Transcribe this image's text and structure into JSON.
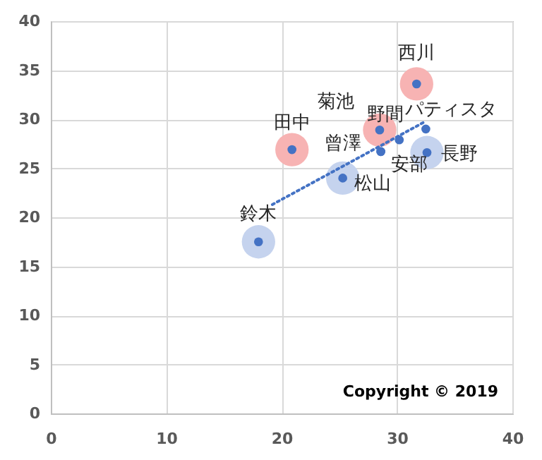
{
  "chart_data": {
    "type": "scatter",
    "xlim": [
      0,
      40
    ],
    "xticks": [
      0,
      10,
      20,
      30,
      40
    ],
    "ylim": [
      0,
      40
    ],
    "yticks": [
      0,
      5,
      10,
      15,
      20,
      25,
      30,
      35,
      40
    ],
    "grid": true,
    "marker": "circle",
    "annotations": [
      "Copyright © 2019"
    ],
    "series": [
      {
        "color": "#f7b3b3",
        "x": [
          31.7,
          28.5,
          20.9
        ],
        "values": [
          33.6,
          28.9,
          26.9
        ]
      },
      {
        "color": "#c5d3ee",
        "x": [
          32.6,
          25.3,
          18.0
        ],
        "values": [
          26.6,
          24.0,
          17.5
        ]
      },
      {
        "type": "line",
        "color": "#4472c4",
        "line_style": "dotted",
        "marker": "none",
        "x": [
          19.2,
          32.5
        ],
        "values": [
          21.3,
          29.8
        ]
      },
      {
        "color": "#4472c4",
        "x": [
          31.7,
          30.2,
          28.5,
          32.5,
          20.9,
          28.6,
          28.6,
          32.6,
          25.3,
          18.0
        ],
        "values": [
          33.6,
          27.9,
          28.9,
          29.0,
          26.9,
          26.7,
          26.7,
          26.6,
          24.0,
          17.5
        ],
        "value_labels": [
          "西川",
          "野間",
          "菊池",
          "パティスタ",
          "田中",
          "曾澤",
          "安部",
          "長野",
          "松山",
          "鈴木"
        ]
      }
    ]
  }
}
